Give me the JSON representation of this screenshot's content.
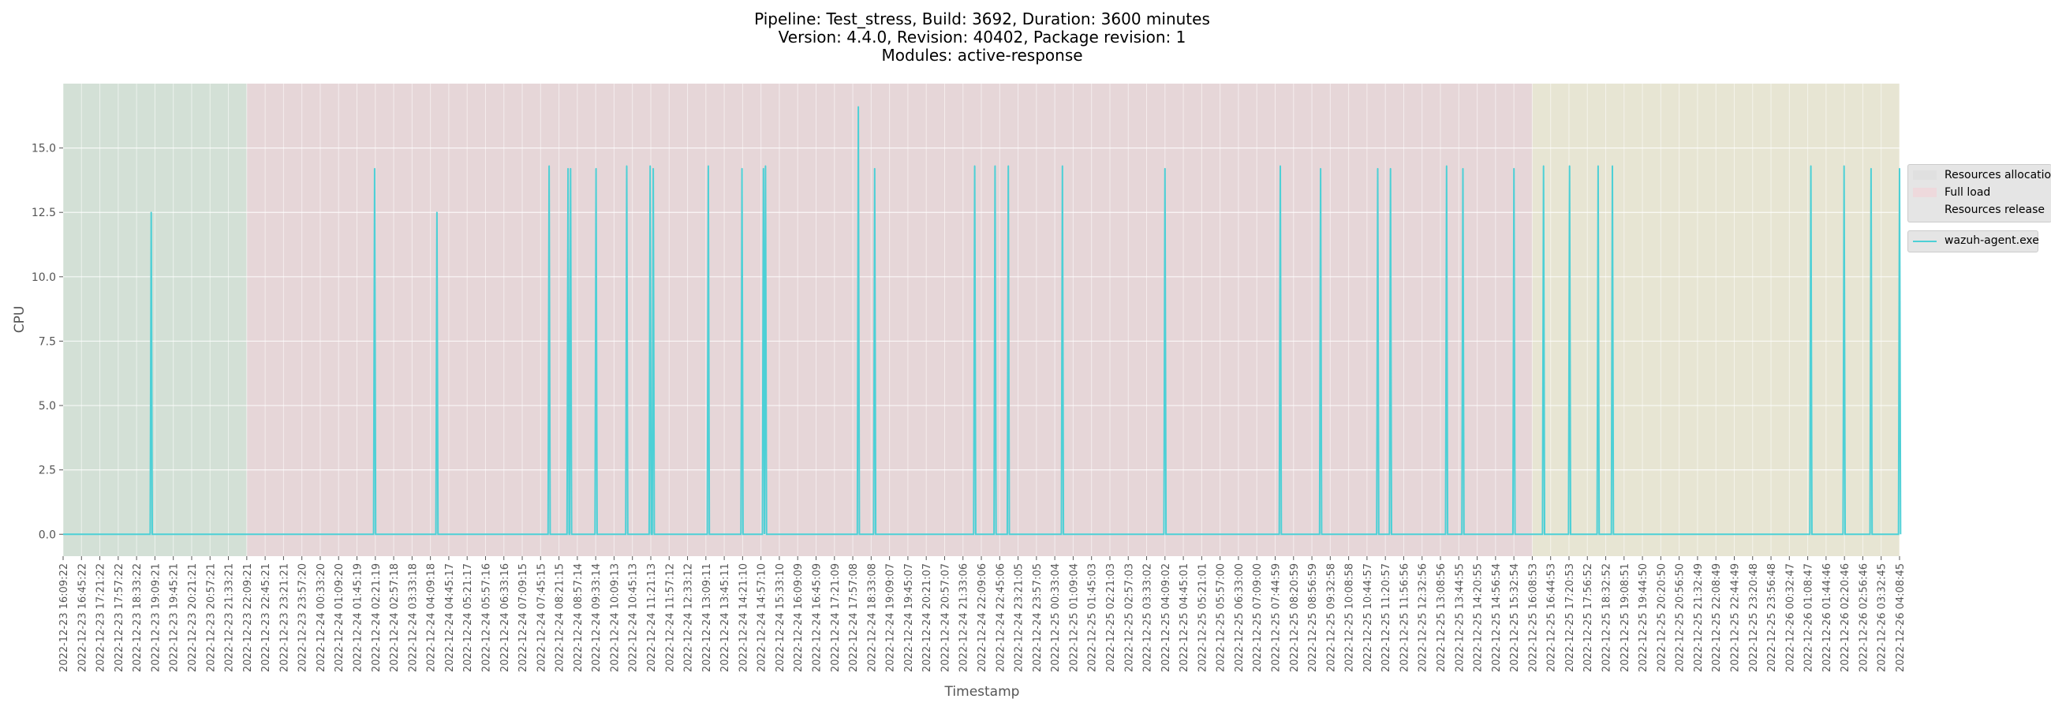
{
  "figure": {
    "title_lines": [
      "Pipeline: Test_stress, Build: 3692, Duration: 3600 minutes",
      "Version: 4.4.0, Revision: 40402, Package revision: 1",
      "Modules: active-response"
    ]
  },
  "chart_data": {
    "type": "line",
    "xlabel": "Timestamp",
    "ylabel": "CPU",
    "ylim": [
      -0.85,
      17.5
    ],
    "yticks": [
      0.0,
      2.5,
      5.0,
      7.5,
      10.0,
      12.5,
      15.0
    ],
    "ytick_labels": [
      "0.0",
      "2.5",
      "5.0",
      "7.5",
      "10.0",
      "12.5",
      "15.0"
    ],
    "grid": true,
    "legend_placement": "right, outside plot",
    "colors": {
      "plot_background": "#e5e5e5",
      "line": "#4dd0d6",
      "phase_allocation": "#d3e0d6",
      "phase_full_load": "#e6d6d8",
      "phase_release": "#e7e5d3"
    },
    "xtick_labels": [
      "2022-12-23 16:09:22",
      "2022-12-23 16:45:22",
      "2022-12-23 17:21:22",
      "2022-12-23 17:57:22",
      "2022-12-23 18:33:22",
      "2022-12-23 19:09:21",
      "2022-12-23 19:45:21",
      "2022-12-23 20:21:21",
      "2022-12-23 20:57:21",
      "2022-12-23 21:33:21",
      "2022-12-23 22:09:21",
      "2022-12-23 22:45:21",
      "2022-12-23 23:21:21",
      "2022-12-23 23:57:20",
      "2022-12-24 00:33:20",
      "2022-12-24 01:09:20",
      "2022-12-24 01:45:19",
      "2022-12-24 02:21:19",
      "2022-12-24 02:57:18",
      "2022-12-24 03:33:18",
      "2022-12-24 04:09:18",
      "2022-12-24 04:45:17",
      "2022-12-24 05:21:17",
      "2022-12-24 05:57:16",
      "2022-12-24 06:33:16",
      "2022-12-24 07:09:15",
      "2022-12-24 07:45:15",
      "2022-12-24 08:21:15",
      "2022-12-24 08:57:14",
      "2022-12-24 09:33:14",
      "2022-12-24 10:09:13",
      "2022-12-24 10:45:13",
      "2022-12-24 11:21:13",
      "2022-12-24 11:57:12",
      "2022-12-24 12:33:12",
      "2022-12-24 13:09:11",
      "2022-12-24 13:45:11",
      "2022-12-24 14:21:10",
      "2022-12-24 14:57:10",
      "2022-12-24 15:33:10",
      "2022-12-24 16:09:09",
      "2022-12-24 16:45:09",
      "2022-12-24 17:21:09",
      "2022-12-24 17:57:08",
      "2022-12-24 18:33:08",
      "2022-12-24 19:09:07",
      "2022-12-24 19:45:07",
      "2022-12-24 20:21:07",
      "2022-12-24 20:57:07",
      "2022-12-24 21:33:06",
      "2022-12-24 22:09:06",
      "2022-12-24 22:45:06",
      "2022-12-24 23:21:05",
      "2022-12-24 23:57:05",
      "2022-12-25 00:33:04",
      "2022-12-25 01:09:04",
      "2022-12-25 01:45:03",
      "2022-12-25 02:21:03",
      "2022-12-25 02:57:03",
      "2022-12-25 03:33:02",
      "2022-12-25 04:09:02",
      "2022-12-25 04:45:01",
      "2022-12-25 05:21:01",
      "2022-12-25 05:57:00",
      "2022-12-25 06:33:00",
      "2022-12-25 07:09:00",
      "2022-12-25 07:44:59",
      "2022-12-25 08:20:59",
      "2022-12-25 08:56:59",
      "2022-12-25 09:32:58",
      "2022-12-25 10:08:58",
      "2022-12-25 10:44:57",
      "2022-12-25 11:20:57",
      "2022-12-25 11:56:56",
      "2022-12-25 12:32:56",
      "2022-12-25 13:08:56",
      "2022-12-25 13:44:55",
      "2022-12-25 14:20:55",
      "2022-12-25 14:56:54",
      "2022-12-25 15:32:54",
      "2022-12-25 16:08:53",
      "2022-12-25 16:44:53",
      "2022-12-25 17:20:53",
      "2022-12-25 17:56:52",
      "2022-12-25 18:32:52",
      "2022-12-25 19:08:51",
      "2022-12-25 19:44:50",
      "2022-12-25 20:20:50",
      "2022-12-25 20:56:50",
      "2022-12-25 21:32:49",
      "2022-12-25 22:08:49",
      "2022-12-25 22:44:49",
      "2022-12-25 23:20:48",
      "2022-12-25 23:56:48",
      "2022-12-26 00:32:47",
      "2022-12-26 01:08:47",
      "2022-12-26 01:44:46",
      "2022-12-26 02:20:46",
      "2022-12-26 02:56:46",
      "2022-12-26 03:32:45",
      "2022-12-26 04:08:45"
    ],
    "phases": [
      {
        "label": "Resources allocation",
        "start": "2022-12-23 16:09:22",
        "end": "2022-12-23 22:09:21",
        "color_key": "phase_allocation"
      },
      {
        "label": "Full load",
        "start": "2022-12-23 22:09:21",
        "end": "2022-12-25 16:08:53",
        "color_key": "phase_full_load"
      },
      {
        "label": "Resources release",
        "start": "2022-12-25 16:08:53",
        "end": "2022-12-26 04:08:45",
        "color_key": "phase_release"
      }
    ],
    "series": [
      {
        "name": "wazuh-agent.exe",
        "x": [
          "2022-12-23 16:09:22",
          "2022-12-23 19:02:00",
          "2022-12-24 02:20:00",
          "2022-12-24 04:22:00",
          "2022-12-24 08:02:00",
          "2022-12-24 08:39:00",
          "2022-12-24 08:44:00",
          "2022-12-24 09:34:00",
          "2022-12-24 10:34:00",
          "2022-12-24 11:20:00",
          "2022-12-24 11:26:00",
          "2022-12-24 13:14:00",
          "2022-12-24 14:20:00",
          "2022-12-24 15:02:00",
          "2022-12-24 15:06:00",
          "2022-12-24 18:08:00",
          "2022-12-24 18:40:00",
          "2022-12-24 21:56:00",
          "2022-12-24 22:36:00",
          "2022-12-24 23:02:00",
          "2022-12-25 00:48:00",
          "2022-12-25 04:09:00",
          "2022-12-25 07:55:00",
          "2022-12-25 09:14:00",
          "2022-12-25 11:06:00",
          "2022-12-25 11:31:00",
          "2022-12-25 13:21:00",
          "2022-12-25 13:53:00",
          "2022-12-25 15:33:00",
          "2022-12-25 16:31:00",
          "2022-12-25 17:22:00",
          "2022-12-25 18:18:00",
          "2022-12-25 18:46:00",
          "2022-12-26 01:15:00",
          "2022-12-26 02:20:00",
          "2022-12-26 03:13:00",
          "2022-12-26 04:08:45"
        ],
        "values": [
          0.0,
          12.5,
          14.2,
          12.5,
          14.3,
          14.2,
          14.2,
          14.2,
          14.3,
          14.3,
          14.2,
          14.3,
          14.2,
          14.2,
          14.3,
          16.6,
          14.2,
          14.3,
          14.3,
          14.3,
          14.3,
          14.2,
          14.3,
          14.2,
          14.2,
          14.2,
          14.3,
          14.2,
          14.2,
          14.3,
          14.3,
          14.3,
          14.3,
          14.3,
          14.3,
          14.2,
          14.2
        ]
      }
    ]
  }
}
